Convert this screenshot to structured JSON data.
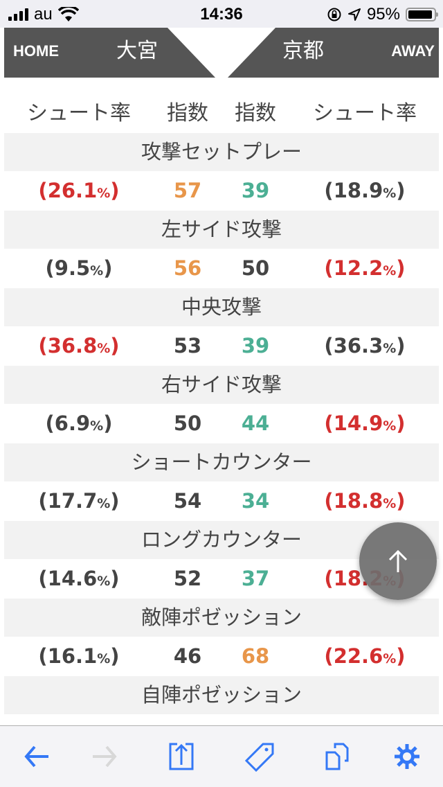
{
  "status_bar": {
    "carrier": "au",
    "time": "14:36",
    "battery": "95%",
    "battery_level": 95
  },
  "header": {
    "home_label": "HOME",
    "home_team": "大宮",
    "away_team": "京都",
    "away_label": "AWAY"
  },
  "column_headers": [
    "シュート率",
    "指数",
    "指数",
    "シュート率"
  ],
  "colors": {
    "red": "#d32f2f",
    "orange": "#e8964a",
    "teal": "#4caf94",
    "dark": "#444444",
    "accent": "#3478f6"
  },
  "rows": [
    {
      "category": "攻撃セットプレー",
      "home_rate": "26.1",
      "home_rate_color": "red",
      "home_index": "57",
      "home_index_color": "orange",
      "away_index": "39",
      "away_index_color": "teal",
      "away_rate": "18.9",
      "away_rate_color": "dark"
    },
    {
      "category": "左サイド攻撃",
      "home_rate": "9.5",
      "home_rate_color": "dark",
      "home_index": "56",
      "home_index_color": "orange",
      "away_index": "50",
      "away_index_color": "dark",
      "away_rate": "12.2",
      "away_rate_color": "red"
    },
    {
      "category": "中央攻撃",
      "home_rate": "36.8",
      "home_rate_color": "red",
      "home_index": "53",
      "home_index_color": "dark",
      "away_index": "39",
      "away_index_color": "teal",
      "away_rate": "36.3",
      "away_rate_color": "dark"
    },
    {
      "category": "右サイド攻撃",
      "home_rate": "6.9",
      "home_rate_color": "dark",
      "home_index": "50",
      "home_index_color": "dark",
      "away_index": "44",
      "away_index_color": "teal",
      "away_rate": "14.9",
      "away_rate_color": "red"
    },
    {
      "category": "ショートカウンター",
      "home_rate": "17.7",
      "home_rate_color": "dark",
      "home_index": "54",
      "home_index_color": "dark",
      "away_index": "34",
      "away_index_color": "teal",
      "away_rate": "18.8",
      "away_rate_color": "red"
    },
    {
      "category": "ロングカウンター",
      "home_rate": "14.6",
      "home_rate_color": "dark",
      "home_index": "52",
      "home_index_color": "dark",
      "away_index": "37",
      "away_index_color": "teal",
      "away_rate": "18.2",
      "away_rate_color": "red"
    },
    {
      "category": "敵陣ポゼッション",
      "home_rate": "16.1",
      "home_rate_color": "dark",
      "home_index": "46",
      "home_index_color": "dark",
      "away_index": "68",
      "away_index_color": "orange",
      "away_rate": "22.6",
      "away_rate_color": "red"
    },
    {
      "category": "自陣ポゼッション"
    }
  ],
  "percent_sign": "%",
  "toolbar": {
    "icons": [
      "back-icon",
      "forward-icon",
      "share-icon",
      "tag-icon",
      "copy-icon",
      "gear-icon"
    ],
    "forward_disabled": true
  },
  "fab": {
    "icon": "arrow-up-icon"
  }
}
